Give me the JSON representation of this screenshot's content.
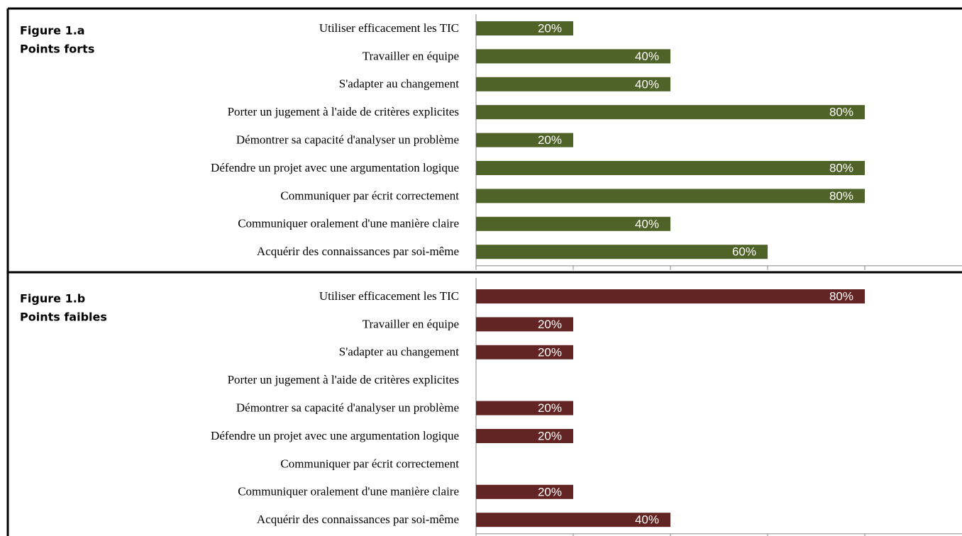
{
  "chart_data": [
    {
      "type": "bar",
      "orientation": "horizontal",
      "title": "Figure 1.a",
      "subtitle": "Points forts",
      "categories": [
        "Utiliser efficacement les TIC",
        "Travailler en équipe",
        "S'adapter au changement",
        "Porter un jugement à l'aide de critères explicites",
        "Démontrer sa capacité d'analyser un problème",
        "Défendre un projet avec une argumentation logique",
        "Communiquer par écrit correctement",
        "Communiquer oralement d'une manière claire ",
        "Acquérir des connaissances par soi-même"
      ],
      "values": [
        20,
        40,
        40,
        80,
        20,
        80,
        80,
        40,
        60
      ],
      "value_labels": [
        "20%",
        "40%",
        "40%",
        "80%",
        "20%",
        "80%",
        "80%",
        "40%",
        "60%"
      ],
      "color": "#4f6228",
      "xlim": [
        0,
        100
      ],
      "xticks": [
        0,
        20,
        40,
        60,
        80
      ]
    },
    {
      "type": "bar",
      "orientation": "horizontal",
      "title": "Figure 1.b",
      "subtitle": "Points faibles",
      "categories": [
        "Utiliser efficacement les TIC",
        "Travailler en équipe",
        "S'adapter au changement",
        "Porter un jugement à l'aide de critères explicites",
        "Démontrer sa capacité d'analyser un problème",
        "Défendre un projet avec une argumentation logique",
        "Communiquer par écrit correctement",
        "Communiquer oralement d'une manière claire ",
        "Acquérir des connaissances par soi-même"
      ],
      "values": [
        80,
        20,
        20,
        0,
        20,
        20,
        0,
        20,
        40
      ],
      "value_labels": [
        "80%",
        "20%",
        "20%",
        null,
        "20%",
        "20%",
        null,
        "20%",
        "40%"
      ],
      "color": "#632523",
      "xlim": [
        0,
        100
      ],
      "xticks": [
        0,
        20,
        40,
        60,
        80
      ]
    }
  ]
}
